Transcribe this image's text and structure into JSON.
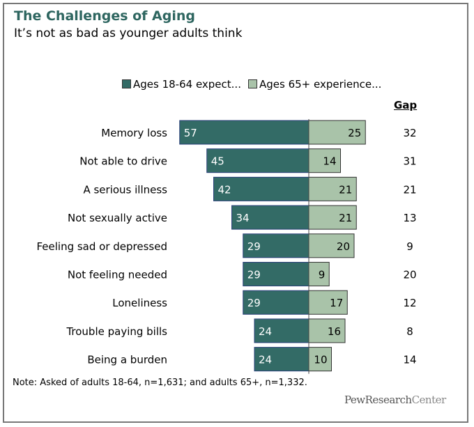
{
  "chart_data": {
    "type": "bar",
    "title": "The Challenges of Aging",
    "subtitle": "It’s not as bad as younger adults think",
    "categories": [
      "Memory loss",
      "Not able to drive",
      "A serious illness",
      "Not sexually active",
      "Feeling sad or depressed",
      "Not feeling needed",
      "Loneliness",
      "Trouble paying bills",
      "Being a burden"
    ],
    "series": [
      {
        "name": "Ages 18-64 expect...",
        "color": "#336b66",
        "values": [
          57,
          45,
          42,
          34,
          29,
          29,
          29,
          24,
          24
        ]
      },
      {
        "name": "Ages 65+ experience...",
        "color": "#a9c3a9",
        "values": [
          25,
          14,
          21,
          21,
          20,
          9,
          17,
          16,
          10
        ]
      }
    ],
    "gap_label": "Gap",
    "gap": [
      32,
      31,
      21,
      13,
      9,
      20,
      12,
      8,
      14
    ],
    "legend": "top",
    "grid": false,
    "note": "Note: Asked of adults 18-64, n=1,631; and adults 65+, n=1,332.",
    "source_logo": "PewResearchCenter"
  }
}
